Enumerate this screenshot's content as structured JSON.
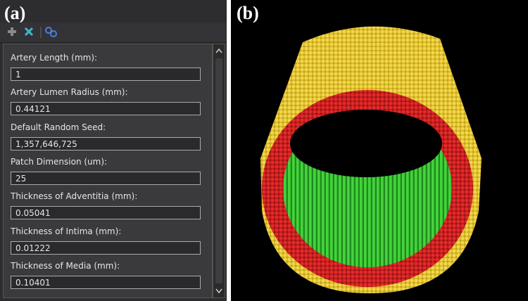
{
  "panels": {
    "a": "(a)",
    "b": "(b)"
  },
  "properties": [
    {
      "label": "Artery Length (mm):",
      "value": "1"
    },
    {
      "label": "Artery Lumen Radius (mm):",
      "value": "0.44121"
    },
    {
      "label": "Default Random Seed:",
      "value": "1,357,646,725"
    },
    {
      "label": "Patch Dimension (um):",
      "value": "25"
    },
    {
      "label": "Thickness of Adventitia (mm):",
      "value": "0.05041"
    },
    {
      "label": "Thickness of Intima (mm):",
      "value": "0.01222"
    },
    {
      "label": "Thickness of Media (mm):",
      "value": "0.10401"
    }
  ]
}
